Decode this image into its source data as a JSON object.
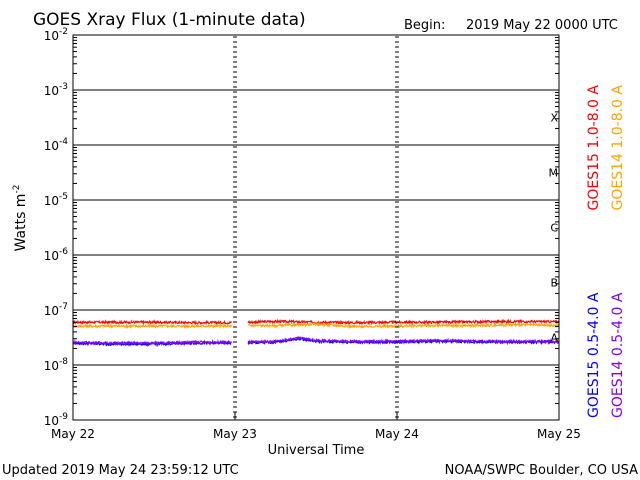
{
  "header": {
    "title": "GOES Xray Flux (1-minute data)",
    "begin_label": "Begin:",
    "begin_value": "2019 May 22 0000 UTC"
  },
  "footer": {
    "updated": "Updated 2019 May 24 23:59:12 UTC",
    "credit": "NOAA/SWPC Boulder, CO USA"
  },
  "chart_data": {
    "type": "line",
    "xlabel": "Universal Time",
    "ylabel": "Watts m",
    "ylabel_sup": "-2",
    "x_range": [
      "2019-05-22 00:00",
      "2019-05-25 00:00"
    ],
    "x_ticks": [
      {
        "label": "May 22",
        "day": 0
      },
      {
        "label": "May 23",
        "day": 1
      },
      {
        "label": "May 24",
        "day": 2
      },
      {
        "label": "May 25",
        "day": 3
      }
    ],
    "y_scale": "log",
    "ylim": [
      1e-09,
      0.01
    ],
    "y_ticks": [
      {
        "exp": -9,
        "base": "10",
        "sup": "-9"
      },
      {
        "exp": -8,
        "base": "10",
        "sup": "-8"
      },
      {
        "exp": -7,
        "base": "10",
        "sup": "-7"
      },
      {
        "exp": -6,
        "base": "10",
        "sup": "-6"
      },
      {
        "exp": -5,
        "base": "10",
        "sup": "-5"
      },
      {
        "exp": -4,
        "base": "10",
        "sup": "-4"
      },
      {
        "exp": -3,
        "base": "10",
        "sup": "-3"
      },
      {
        "exp": -2,
        "base": "10",
        "sup": "-2"
      }
    ],
    "flare_classes": [
      {
        "label": "A",
        "exp": -8
      },
      {
        "label": "B",
        "exp": -7
      },
      {
        "label": "C",
        "exp": -6
      },
      {
        "label": "M",
        "exp": -5
      },
      {
        "label": "X",
        "exp": -4
      }
    ],
    "grid_horizontal": true,
    "data_gap": {
      "start_day": 0.98,
      "end_day": 1.08
    },
    "series": [
      {
        "name": "GOES15 1.0-8.0 A",
        "color": "#ff0000",
        "x": [
          0.0,
          0.25,
          0.5,
          0.75,
          0.98,
          1.08,
          1.25,
          1.5,
          1.75,
          2.0,
          2.25,
          2.5,
          2.75,
          3.0
        ],
        "y": [
          6e-08,
          6e-08,
          6e-08,
          5.9e-08,
          5.9e-08,
          6e-08,
          6.2e-08,
          6e-08,
          5.9e-08,
          6e-08,
          6e-08,
          6.1e-08,
          6.2e-08,
          6.1e-08
        ]
      },
      {
        "name": "GOES14 1.0-8.0 A",
        "color": "#ffa500",
        "x": [
          0.0,
          0.25,
          0.5,
          0.75,
          0.98,
          1.08,
          1.25,
          1.5,
          1.75,
          2.0,
          2.25,
          2.5,
          2.75,
          3.0
        ],
        "y": [
          5.1e-08,
          5.1e-08,
          5.1e-08,
          5.1e-08,
          5.1e-08,
          5.2e-08,
          5.2e-08,
          5.5e-08,
          5e-08,
          5.1e-08,
          5.2e-08,
          5.2e-08,
          5.4e-08,
          5.2e-08
        ]
      },
      {
        "name": "GOES15 0.5-4.0 A",
        "color": "#0000ff",
        "x": [
          0.0,
          0.25,
          0.5,
          0.75,
          0.98,
          1.08,
          1.25,
          1.4,
          1.5,
          1.75,
          2.0,
          2.25,
          2.5,
          2.75,
          3.0
        ],
        "y": [
          2.5e-08,
          2.4e-08,
          2.4e-08,
          2.5e-08,
          2.5e-08,
          2.5e-08,
          2.6e-08,
          3e-08,
          2.7e-08,
          2.6e-08,
          2.6e-08,
          2.7e-08,
          2.6e-08,
          2.6e-08,
          2.6e-08
        ]
      },
      {
        "name": "GOES14 0.5-4.0 A",
        "color": "#7f00ff",
        "x": [
          0.0,
          0.25,
          0.5,
          0.75,
          0.98,
          1.08,
          1.25,
          1.4,
          1.5,
          1.75,
          2.0,
          2.25,
          2.5,
          2.75,
          3.0
        ],
        "y": [
          2.6e-08,
          2.5e-08,
          2.5e-08,
          2.6e-08,
          2.6e-08,
          2.6e-08,
          2.7e-08,
          3.1e-08,
          2.8e-08,
          2.7e-08,
          2.7e-08,
          2.8e-08,
          2.7e-08,
          2.7e-08,
          2.7e-08
        ]
      }
    ],
    "legend": [
      {
        "label": "GOES15 1.0-8.0 A",
        "color": "#ff0000",
        "group": "top",
        "column": 0
      },
      {
        "label": "GOES14 1.0-8.0 A",
        "color": "#ffa500",
        "group": "top",
        "column": 1
      },
      {
        "label": "GOES15 0.5-4.0 A",
        "color": "#0000ff",
        "group": "bottom",
        "column": 0
      },
      {
        "label": "GOES14 0.5-4.0 A",
        "color": "#7f00ff",
        "group": "bottom",
        "column": 1
      }
    ],
    "legend_placement": "right"
  }
}
